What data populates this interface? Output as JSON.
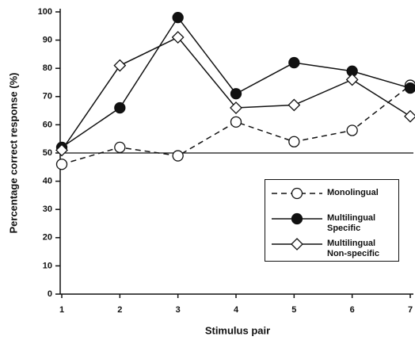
{
  "chart_data": {
    "type": "line",
    "x_label": "Stimulus pair",
    "y_label": "Percentage correct response (%)",
    "x": [
      1,
      2,
      3,
      4,
      5,
      6,
      7
    ],
    "xlim": [
      1,
      7
    ],
    "xticks": [
      1,
      2,
      3,
      4,
      5,
      6,
      7
    ],
    "ylim": [
      0,
      100
    ],
    "yticks": [
      0,
      10,
      20,
      30,
      40,
      50,
      60,
      70,
      80,
      90,
      100
    ],
    "reference_line": 50,
    "series": [
      {
        "name": "Monolingual",
        "color": "#111111",
        "marker": "open-circle",
        "dashed": true,
        "values": [
          46,
          52,
          49,
          61,
          54,
          58,
          74
        ]
      },
      {
        "name": "Multilingual Specific",
        "color": "#111111",
        "marker": "filled-circle",
        "dashed": false,
        "values": [
          52,
          66,
          98,
          71,
          82,
          79,
          73
        ]
      },
      {
        "name": "Multilingual Non-specific",
        "color": "#111111",
        "marker": "diamond",
        "dashed": false,
        "values": [
          51,
          81,
          91,
          66,
          67,
          76,
          63
        ]
      }
    ]
  }
}
